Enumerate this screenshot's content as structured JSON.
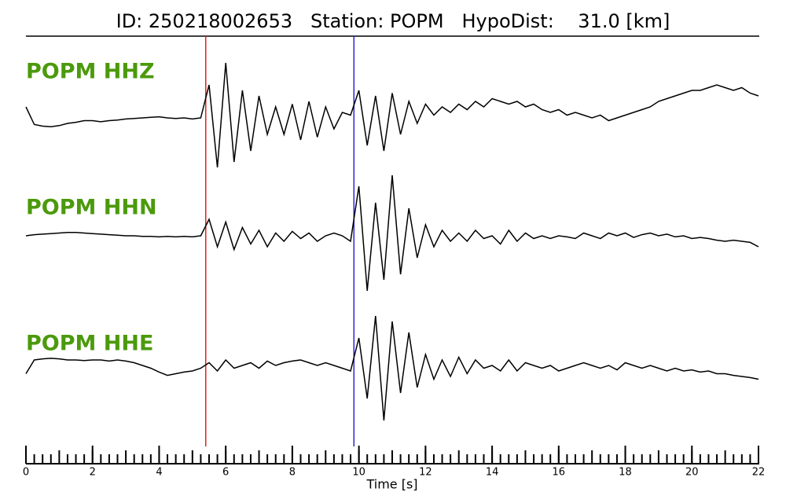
{
  "chart_data": {
    "type": "seismogram",
    "title": "ID: 250218002653   Station: POPM   HypoDist:    31.0 [km]",
    "x_label": "Time [s]",
    "xlim": [
      0,
      22
    ],
    "xticks": [
      0,
      2,
      4,
      6,
      8,
      10,
      12,
      14,
      16,
      18,
      20,
      22
    ],
    "ylim": [
      -1,
      1
    ],
    "label_color": "#4b9a0c",
    "vlines": [
      {
        "x": 5.4,
        "color": "#e0241b"
      },
      {
        "x": 9.85,
        "color": "#2a2ad0"
      }
    ],
    "x": [
      0,
      0.25,
      0.5,
      0.75,
      1,
      1.25,
      1.5,
      1.75,
      2,
      2.25,
      2.5,
      2.75,
      3,
      3.25,
      3.5,
      3.75,
      4,
      4.25,
      4.5,
      4.75,
      5,
      5.25,
      5.5,
      5.75,
      6,
      6.25,
      6.5,
      6.75,
      7,
      7.25,
      7.5,
      7.75,
      8,
      8.25,
      8.5,
      8.75,
      9,
      9.25,
      9.5,
      9.75,
      10,
      10.25,
      10.5,
      10.75,
      11,
      11.25,
      11.5,
      11.75,
      12,
      12.25,
      12.5,
      12.75,
      13,
      13.25,
      13.5,
      13.75,
      14,
      14.25,
      14.5,
      14.75,
      15,
      15.25,
      15.5,
      15.75,
      16,
      16.25,
      16.5,
      16.75,
      17,
      17.25,
      17.5,
      17.75,
      18,
      18.25,
      18.5,
      18.75,
      19,
      19.25,
      19.5,
      19.75,
      20,
      20.25,
      20.5,
      20.75,
      21,
      21.25,
      21.5,
      21.75,
      22
    ],
    "series": [
      {
        "name": "POPM HHZ",
        "color": "#000000",
        "values": [
          0.2,
          -0.12,
          -0.15,
          -0.16,
          -0.14,
          -0.1,
          -0.08,
          -0.05,
          -0.05,
          -0.07,
          -0.05,
          -0.04,
          -0.02,
          -0.01,
          0.0,
          0.01,
          0.02,
          0.0,
          -0.01,
          0.0,
          -0.02,
          0.0,
          0.6,
          -0.9,
          1.0,
          -0.8,
          0.5,
          -0.6,
          0.4,
          -0.3,
          0.2,
          -0.3,
          0.25,
          -0.4,
          0.3,
          -0.35,
          0.2,
          -0.2,
          0.1,
          0.05,
          0.5,
          -0.5,
          0.4,
          -0.6,
          0.45,
          -0.3,
          0.3,
          -0.1,
          0.25,
          0.05,
          0.2,
          0.1,
          0.25,
          0.15,
          0.3,
          0.2,
          0.35,
          0.3,
          0.25,
          0.3,
          0.2,
          0.25,
          0.15,
          0.1,
          0.15,
          0.05,
          0.1,
          0.05,
          0.0,
          0.05,
          -0.05,
          0.0,
          0.05,
          0.1,
          0.15,
          0.2,
          0.3,
          0.35,
          0.4,
          0.45,
          0.5,
          0.5,
          0.55,
          0.6,
          0.55,
          0.5,
          0.55,
          0.45,
          0.4
        ]
      },
      {
        "name": "POPM HHN",
        "color": "#000000",
        "values": [
          0.0,
          0.02,
          0.03,
          0.04,
          0.05,
          0.06,
          0.06,
          0.05,
          0.04,
          0.03,
          0.02,
          0.01,
          0.0,
          0.0,
          -0.01,
          -0.01,
          -0.02,
          -0.01,
          -0.02,
          -0.01,
          -0.02,
          0.0,
          0.3,
          -0.2,
          0.25,
          -0.25,
          0.15,
          -0.15,
          0.1,
          -0.2,
          0.05,
          -0.1,
          0.08,
          -0.05,
          0.05,
          -0.1,
          0.0,
          0.05,
          0.0,
          -0.1,
          0.9,
          -1.0,
          0.6,
          -0.8,
          1.1,
          -0.7,
          0.5,
          -0.4,
          0.2,
          -0.2,
          0.1,
          -0.1,
          0.05,
          -0.1,
          0.1,
          -0.05,
          0.0,
          -0.15,
          0.1,
          -0.1,
          0.05,
          -0.05,
          0.0,
          -0.05,
          0.0,
          -0.02,
          -0.05,
          0.05,
          0.0,
          -0.05,
          0.05,
          0.0,
          0.05,
          -0.03,
          0.02,
          0.05,
          0.0,
          0.03,
          -0.02,
          0.0,
          -0.05,
          -0.03,
          -0.05,
          -0.08,
          -0.1,
          -0.08,
          -0.1,
          -0.12,
          -0.2
        ]
      },
      {
        "name": "POPM HHE",
        "color": "#000000",
        "values": [
          -0.15,
          0.1,
          0.12,
          0.13,
          0.12,
          0.1,
          0.1,
          0.09,
          0.1,
          0.1,
          0.08,
          0.1,
          0.08,
          0.05,
          0.0,
          -0.05,
          -0.12,
          -0.18,
          -0.15,
          -0.12,
          -0.1,
          -0.05,
          0.05,
          -0.1,
          0.1,
          -0.05,
          0.0,
          0.05,
          -0.05,
          0.08,
          0.0,
          0.05,
          0.08,
          0.1,
          0.05,
          0.0,
          0.05,
          0.0,
          -0.05,
          -0.1,
          0.5,
          -0.6,
          0.9,
          -1.0,
          0.8,
          -0.5,
          0.6,
          -0.4,
          0.2,
          -0.25,
          0.1,
          -0.2,
          0.15,
          -0.15,
          0.1,
          -0.05,
          0.0,
          -0.1,
          0.1,
          -0.1,
          0.05,
          0.0,
          -0.05,
          0.0,
          -0.1,
          -0.05,
          0.0,
          0.05,
          0.0,
          -0.05,
          0.0,
          -0.08,
          0.05,
          0.0,
          -0.05,
          0.0,
          -0.05,
          -0.1,
          -0.05,
          -0.1,
          -0.08,
          -0.12,
          -0.1,
          -0.15,
          -0.15,
          -0.18,
          -0.2,
          -0.22,
          -0.25
        ]
      }
    ]
  }
}
